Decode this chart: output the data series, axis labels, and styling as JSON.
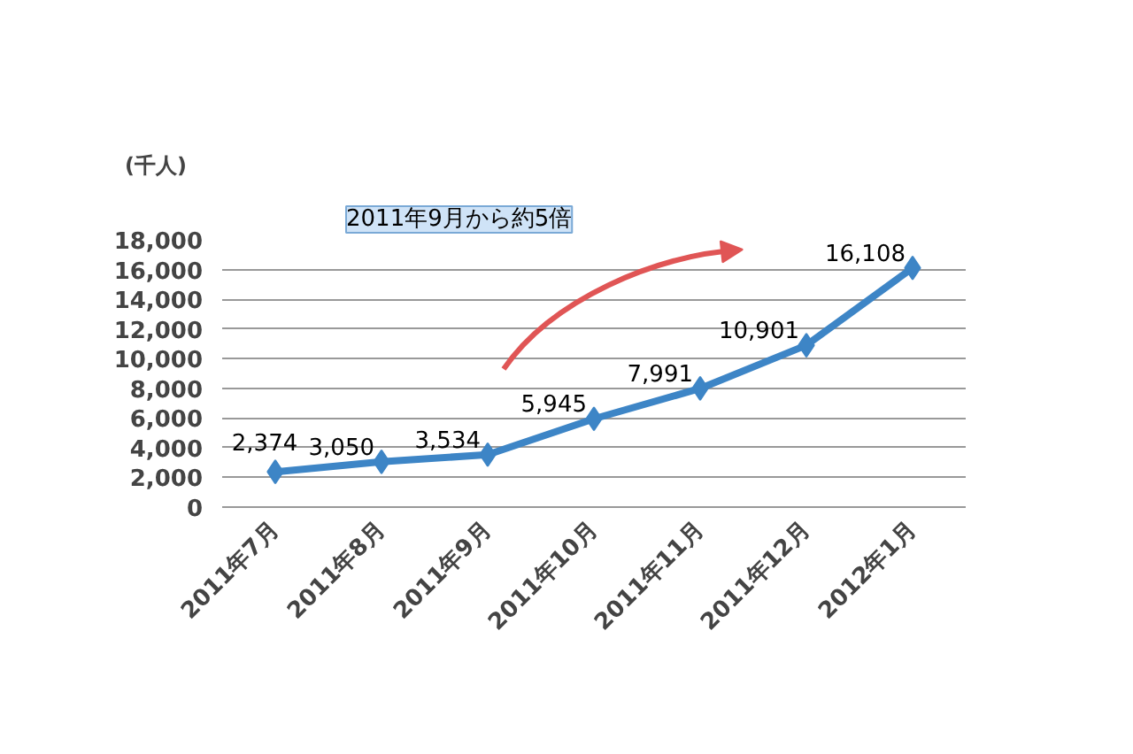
{
  "chart_data": {
    "type": "line",
    "ylabel": "(千人)",
    "categories": [
      "2011年7月",
      "2011年8月",
      "2011年9月",
      "2011年10月",
      "2011年11月",
      "2011年12月",
      "2012年1月"
    ],
    "series": [
      {
        "color": "#3d85c6",
        "values": [
          2374,
          3050,
          3534,
          5945,
          7991,
          10901,
          16108
        ]
      }
    ],
    "value_labels": [
      "2,374",
      "3,050",
      "3,534",
      "5,945",
      "7,991",
      "10,901",
      "16,108"
    ],
    "ylim": [
      0,
      18000
    ],
    "yticks": [
      {
        "value": 0,
        "label": "0"
      },
      {
        "value": 2000,
        "label": "2,000"
      },
      {
        "value": 4000,
        "label": "4,000"
      },
      {
        "value": 6000,
        "label": "6,000"
      },
      {
        "value": 8000,
        "label": "8,000"
      },
      {
        "value": 10000,
        "label": "10,000"
      },
      {
        "value": 12000,
        "label": "12,000"
      },
      {
        "value": 14000,
        "label": "14,000"
      },
      {
        "value": 16000,
        "label": "16,000"
      },
      {
        "value": 18000,
        "label": "18,000"
      }
    ],
    "annotations": [
      "2011年9月から約5倍"
    ],
    "grid": "y",
    "marker": "diamond",
    "line_style": "solid"
  }
}
